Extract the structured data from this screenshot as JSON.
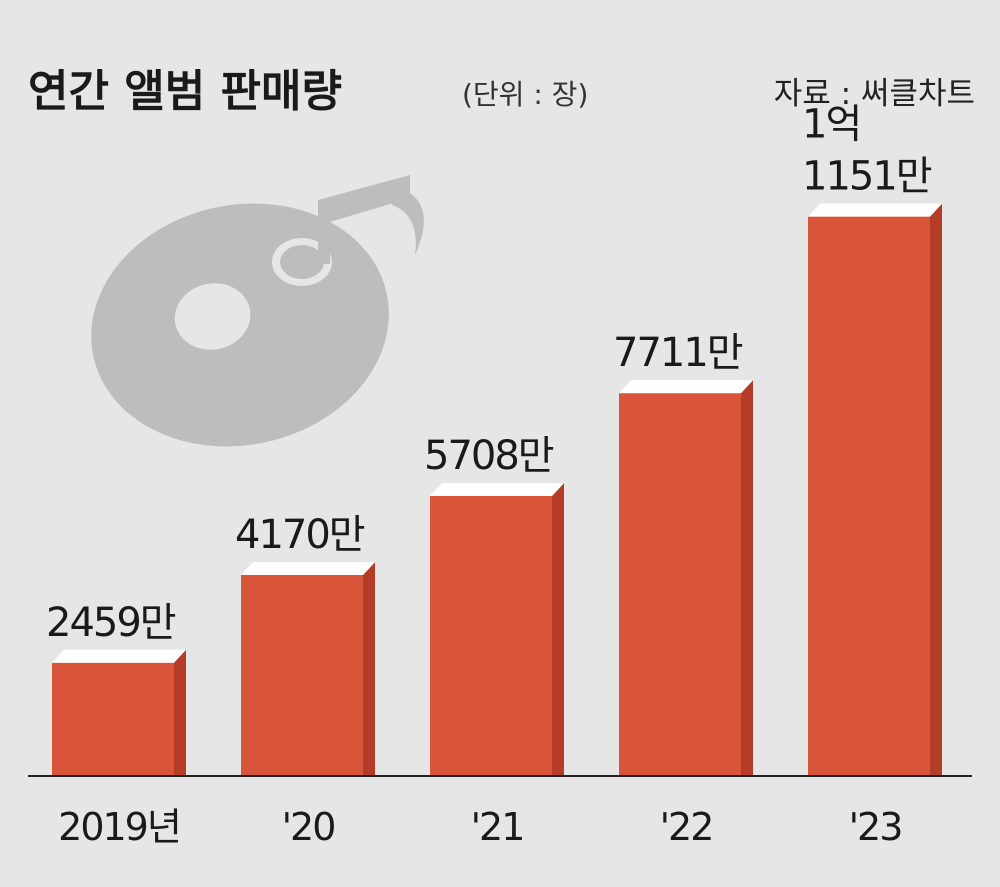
{
  "chart_data": {
    "type": "bar",
    "title": "연간 앨범 판매량",
    "unit": "(단위 : 장)",
    "source": "자료 : 써클차트",
    "categories": [
      "2019년",
      "'20",
      "'21",
      "'22",
      "'23"
    ],
    "values": [
      24590000,
      41700000,
      57080000,
      77110000,
      111510000
    ],
    "value_labels": [
      "2459만",
      "4170만",
      "5708만",
      "7711만",
      "1억\n1151만"
    ],
    "ylim": [
      0,
      120000000
    ],
    "grid": false,
    "legend": "none",
    "colors": {
      "bar_front": "#d9553a",
      "bar_side": "#b53d28",
      "bar_top": "#ffffff",
      "background": "#e6e6e6",
      "icon": "#bdbdbd"
    }
  },
  "decor": {
    "icon": "cd-music-note-icon"
  }
}
